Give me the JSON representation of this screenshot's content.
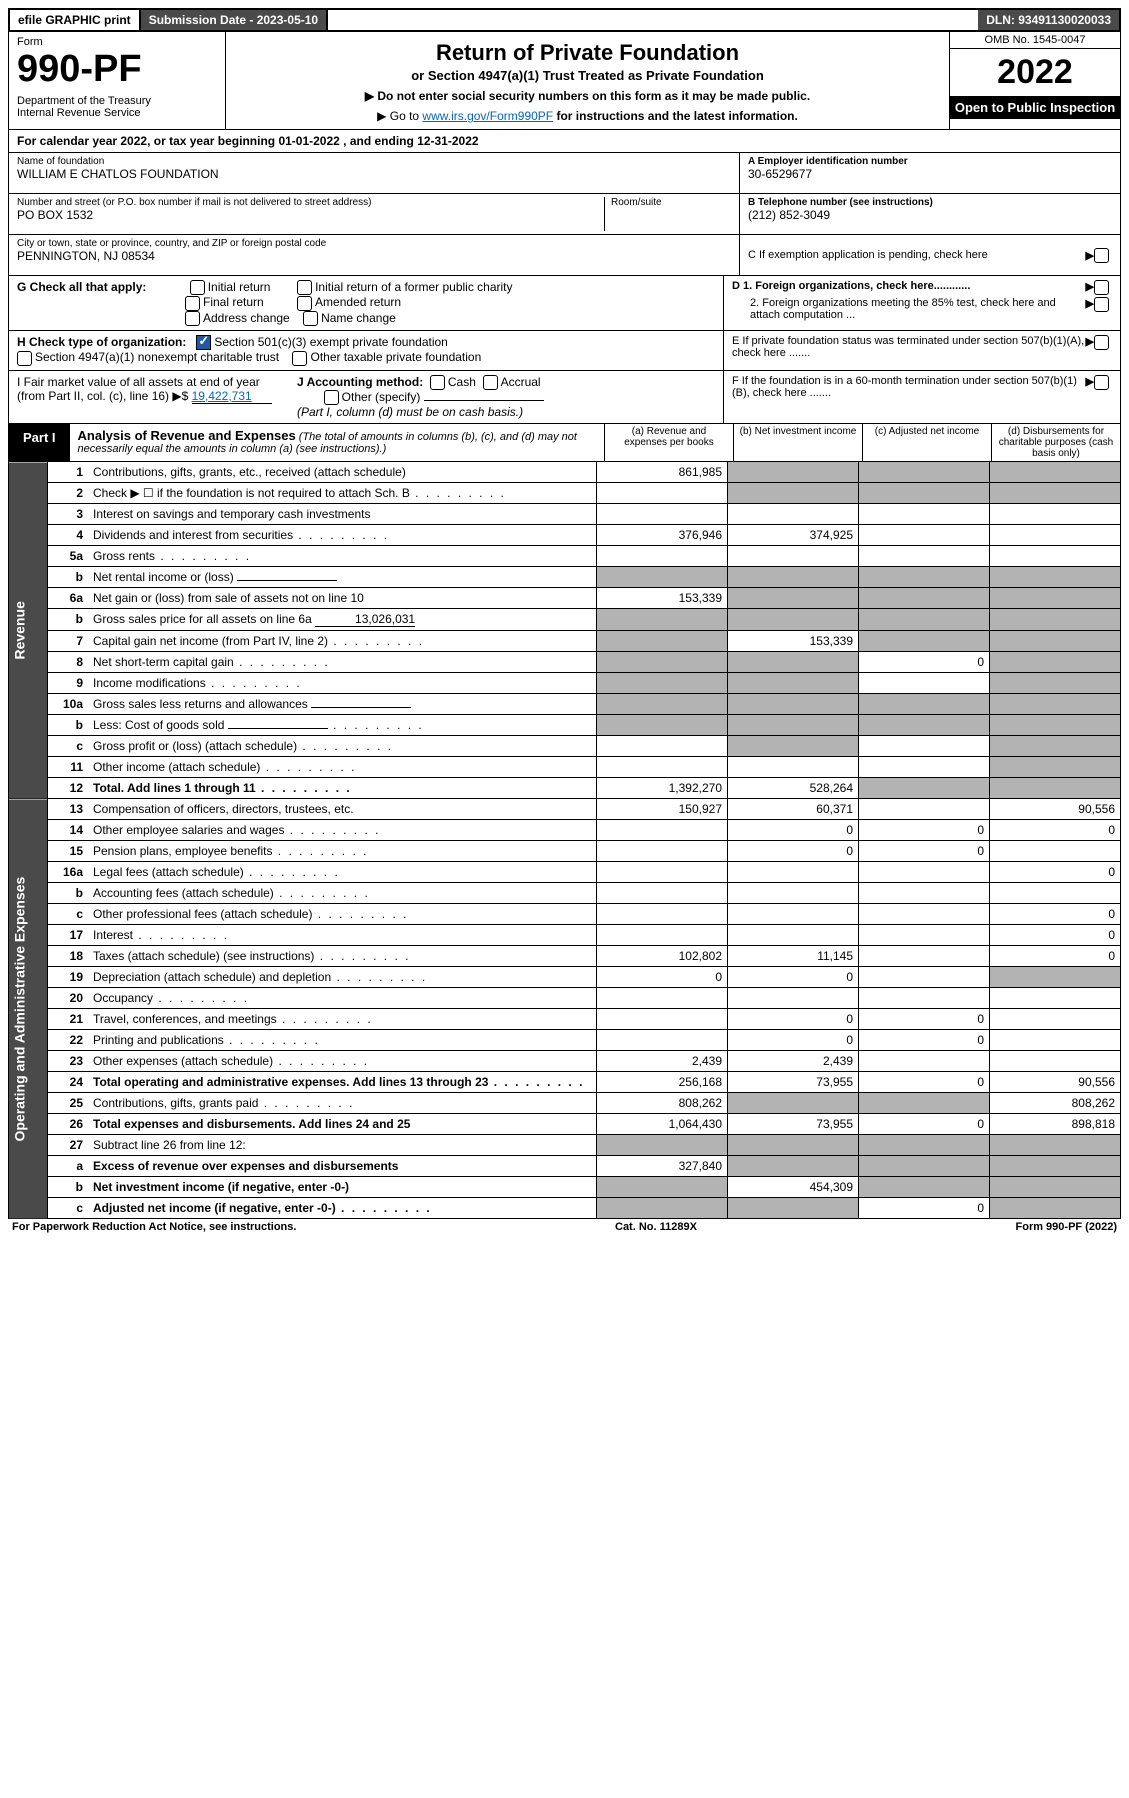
{
  "topbar": {
    "efile": "efile GRAPHIC print",
    "subdate": "Submission Date - 2023-05-10",
    "dln": "DLN: 93491130020033"
  },
  "header": {
    "form_word": "Form",
    "form_num": "990-PF",
    "dept": "Department of the Treasury\nInternal Revenue Service",
    "title": "Return of Private Foundation",
    "subtitle": "or Section 4947(a)(1) Trust Treated as Private Foundation",
    "note1": "▶ Do not enter social security numbers on this form as it may be made public.",
    "note2_pre": "▶ Go to ",
    "note2_link": "www.irs.gov/Form990PF",
    "note2_post": " for instructions and the latest information.",
    "omb": "OMB No. 1545-0047",
    "year": "2022",
    "open": "Open to Public Inspection"
  },
  "calyear": "For calendar year 2022, or tax year beginning 01-01-2022                    , and ending 12-31-2022",
  "info": {
    "name_label": "Name of foundation",
    "name": "WILLIAM E CHATLOS FOUNDATION",
    "addr_label": "Number and street (or P.O. box number if mail is not delivered to street address)",
    "addr": "PO BOX 1532",
    "room_label": "Room/suite",
    "city_label": "City or town, state or province, country, and ZIP or foreign postal code",
    "city": "PENNINGTON, NJ  08534",
    "ein_label": "A Employer identification number",
    "ein": "30-6529677",
    "phone_label": "B Telephone number (see instructions)",
    "phone": "(212) 852-3049",
    "c_label": "C If exemption application is pending, check here"
  },
  "checkG": {
    "label": "G Check all that apply:",
    "opts": [
      "Initial return",
      "Final return",
      "Address change",
      "Initial return of a former public charity",
      "Amended return",
      "Name change"
    ]
  },
  "checkH": {
    "label": "H Check type of organization:",
    "o1": "Section 501(c)(3) exempt private foundation",
    "o2": "Section 4947(a)(1) nonexempt charitable trust",
    "o3": "Other taxable private foundation"
  },
  "sectionD": {
    "d1": "D 1. Foreign organizations, check here............",
    "d2": "2. Foreign organizations meeting the 85% test, check here and attach computation ...",
    "e": "E  If private foundation status was terminated under section 507(b)(1)(A), check here .......",
    "f": "F  If the foundation is in a 60-month termination under section 507(b)(1)(B), check here ......."
  },
  "sectionI": {
    "label": "I Fair market value of all assets at end of year (from Part II, col. (c), line 16) ▶$",
    "val": "19,422,731",
    "j_label": "J Accounting method:",
    "j_cash": "Cash",
    "j_accrual": "Accrual",
    "j_other": "Other (specify)",
    "j_note": "(Part I, column (d) must be on cash basis.)"
  },
  "part1": {
    "label": "Part I",
    "title": "Analysis of Revenue and Expenses",
    "desc": "(The total of amounts in columns (b), (c), and (d) may not necessarily equal the amounts in column (a) (see instructions).)",
    "colA": "(a)  Revenue and expenses per books",
    "colB": "(b)  Net investment income",
    "colC": "(c)  Adjusted net income",
    "colD": "(d)  Disbursements for charitable purposes (cash basis only)"
  },
  "side": {
    "rev": "Revenue",
    "exp": "Operating and Administrative Expenses"
  },
  "rows": [
    {
      "n": "1",
      "d": "Contributions, gifts, grants, etc., received (attach schedule)",
      "a": "861,985",
      "bGrey": true,
      "cGrey": true,
      "ddGrey": true
    },
    {
      "n": "2",
      "d": "Check ▶ ☐ if the foundation is not required to attach Sch. B",
      "dots": true,
      "bGrey": true,
      "cGrey": true,
      "ddGrey": true
    },
    {
      "n": "3",
      "d": "Interest on savings and temporary cash investments"
    },
    {
      "n": "4",
      "d": "Dividends and interest from securities",
      "dots": true,
      "a": "376,946",
      "b": "374,925"
    },
    {
      "n": "5a",
      "d": "Gross rents",
      "dots": true
    },
    {
      "n": "b",
      "d": "Net rental income or (loss)",
      "under": true,
      "aGrey": true,
      "bGrey": true,
      "cGrey": true,
      "ddGrey": true
    },
    {
      "n": "6a",
      "d": "Net gain or (loss) from sale of assets not on line 10",
      "a": "153,339",
      "bGrey": true,
      "cGrey": true,
      "ddGrey": true
    },
    {
      "n": "b",
      "d": "Gross sales price for all assets on line 6a",
      "under": true,
      "underVal": "13,026,031",
      "aGrey": true,
      "bGrey": true,
      "cGrey": true,
      "ddGrey": true
    },
    {
      "n": "7",
      "d": "Capital gain net income (from Part IV, line 2)",
      "dots": true,
      "aGrey": true,
      "b": "153,339",
      "cGrey": true,
      "ddGrey": true
    },
    {
      "n": "8",
      "d": "Net short-term capital gain",
      "dots": true,
      "aGrey": true,
      "bGrey": true,
      "c": "0",
      "ddGrey": true
    },
    {
      "n": "9",
      "d": "Income modifications",
      "dots": true,
      "aGrey": true,
      "bGrey": true,
      "ddGrey": true
    },
    {
      "n": "10a",
      "d": "Gross sales less returns and allowances",
      "under": true,
      "aGrey": true,
      "bGrey": true,
      "cGrey": true,
      "ddGrey": true
    },
    {
      "n": "b",
      "d": "Less: Cost of goods sold",
      "dots": true,
      "under": true,
      "aGrey": true,
      "bGrey": true,
      "cGrey": true,
      "ddGrey": true
    },
    {
      "n": "c",
      "d": "Gross profit or (loss) (attach schedule)",
      "dots": true,
      "bGrey": true,
      "ddGrey": true
    },
    {
      "n": "11",
      "d": "Other income (attach schedule)",
      "dots": true,
      "ddGrey": true
    },
    {
      "n": "12",
      "d": "Total. Add lines 1 through 11",
      "dots": true,
      "bold": true,
      "a": "1,392,270",
      "b": "528,264",
      "cGrey": true,
      "ddGrey": true
    }
  ],
  "expRows": [
    {
      "n": "13",
      "d": "Compensation of officers, directors, trustees, etc.",
      "a": "150,927",
      "b": "60,371",
      "dd": "90,556"
    },
    {
      "n": "14",
      "d": "Other employee salaries and wages",
      "dots": true,
      "b": "0",
      "c": "0",
      "dd": "0"
    },
    {
      "n": "15",
      "d": "Pension plans, employee benefits",
      "dots": true,
      "b": "0",
      "c": "0"
    },
    {
      "n": "16a",
      "d": "Legal fees (attach schedule)",
      "dots": true,
      "dd": "0"
    },
    {
      "n": "b",
      "d": "Accounting fees (attach schedule)",
      "dots": true
    },
    {
      "n": "c",
      "d": "Other professional fees (attach schedule)",
      "dots": true,
      "dd": "0"
    },
    {
      "n": "17",
      "d": "Interest",
      "dots": true,
      "dd": "0"
    },
    {
      "n": "18",
      "d": "Taxes (attach schedule) (see instructions)",
      "dots": true,
      "a": "102,802",
      "b": "11,145",
      "dd": "0"
    },
    {
      "n": "19",
      "d": "Depreciation (attach schedule) and depletion",
      "dots": true,
      "a": "0",
      "b": "0",
      "ddGrey": true
    },
    {
      "n": "20",
      "d": "Occupancy",
      "dots": true
    },
    {
      "n": "21",
      "d": "Travel, conferences, and meetings",
      "dots": true,
      "b": "0",
      "c": "0"
    },
    {
      "n": "22",
      "d": "Printing and publications",
      "dots": true,
      "b": "0",
      "c": "0"
    },
    {
      "n": "23",
      "d": "Other expenses (attach schedule)",
      "dots": true,
      "a": "2,439",
      "b": "2,439"
    },
    {
      "n": "24",
      "d": "Total operating and administrative expenses. Add lines 13 through 23",
      "dots": true,
      "bold": true,
      "a": "256,168",
      "b": "73,955",
      "c": "0",
      "dd": "90,556"
    },
    {
      "n": "25",
      "d": "Contributions, gifts, grants paid",
      "dots": true,
      "a": "808,262",
      "bGrey": true,
      "cGrey": true,
      "dd": "808,262"
    },
    {
      "n": "26",
      "d": "Total expenses and disbursements. Add lines 24 and 25",
      "bold": true,
      "a": "1,064,430",
      "b": "73,955",
      "c": "0",
      "dd": "898,818"
    },
    {
      "n": "27",
      "d": "Subtract line 26 from line 12:",
      "aGrey": true,
      "bGrey": true,
      "cGrey": true,
      "ddGrey": true
    },
    {
      "n": "a",
      "d": "Excess of revenue over expenses and disbursements",
      "bold": true,
      "a": "327,840",
      "bGrey": true,
      "cGrey": true,
      "ddGrey": true
    },
    {
      "n": "b",
      "d": "Net investment income (if negative, enter -0-)",
      "bold": true,
      "aGrey": true,
      "b": "454,309",
      "cGrey": true,
      "ddGrey": true
    },
    {
      "n": "c",
      "d": "Adjusted net income (if negative, enter -0-)",
      "dots": true,
      "bold": true,
      "aGrey": true,
      "bGrey": true,
      "c": "0",
      "ddGrey": true
    }
  ],
  "footer": {
    "left": "For Paperwork Reduction Act Notice, see instructions.",
    "mid": "Cat. No. 11289X",
    "right": "Form 990-PF (2022)"
  }
}
